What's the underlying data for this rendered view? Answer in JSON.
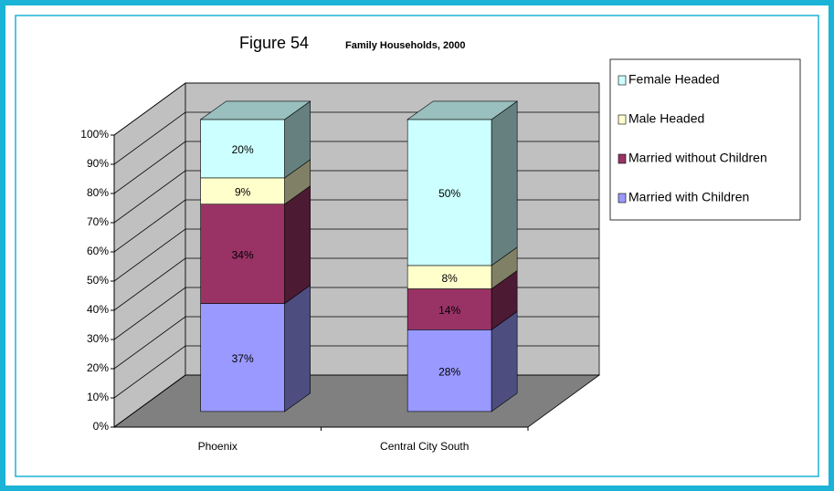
{
  "chart_data": {
    "type": "bar3d_stacked",
    "title": "Figure 54",
    "subtitle": "Family Households, 2000",
    "categories": [
      "Phoenix",
      "Central City South"
    ],
    "series": [
      {
        "name": "Married with Children",
        "color": "#9999ff",
        "values": [
          37,
          28
        ],
        "value_labels": [
          "37%",
          "28%"
        ]
      },
      {
        "name": "Married without Children",
        "color": "#993366",
        "values": [
          34,
          14
        ],
        "value_labels": [
          "34%",
          "14%"
        ]
      },
      {
        "name": "Male Headed",
        "color": "#ffffcc",
        "values": [
          9,
          8
        ],
        "value_labels": [
          "9%",
          "8%"
        ]
      },
      {
        "name": "Female Headed",
        "color": "#ccffff",
        "values": [
          20,
          50
        ],
        "value_labels": [
          "20%",
          "50%"
        ]
      }
    ],
    "ylim": [
      0,
      100
    ],
    "yticks": [
      {
        "value": 0,
        "label": "0%"
      },
      {
        "value": 10,
        "label": "10%"
      },
      {
        "value": 20,
        "label": "20%"
      },
      {
        "value": 30,
        "label": "30%"
      },
      {
        "value": 40,
        "label": "40%"
      },
      {
        "value": 50,
        "label": "50%"
      },
      {
        "value": 60,
        "label": "60%"
      },
      {
        "value": 70,
        "label": "70%"
      },
      {
        "value": 80,
        "label": "80%"
      },
      {
        "value": 90,
        "label": "90%"
      },
      {
        "value": 100,
        "label": "100%"
      }
    ],
    "grid": true,
    "legend": "right"
  }
}
